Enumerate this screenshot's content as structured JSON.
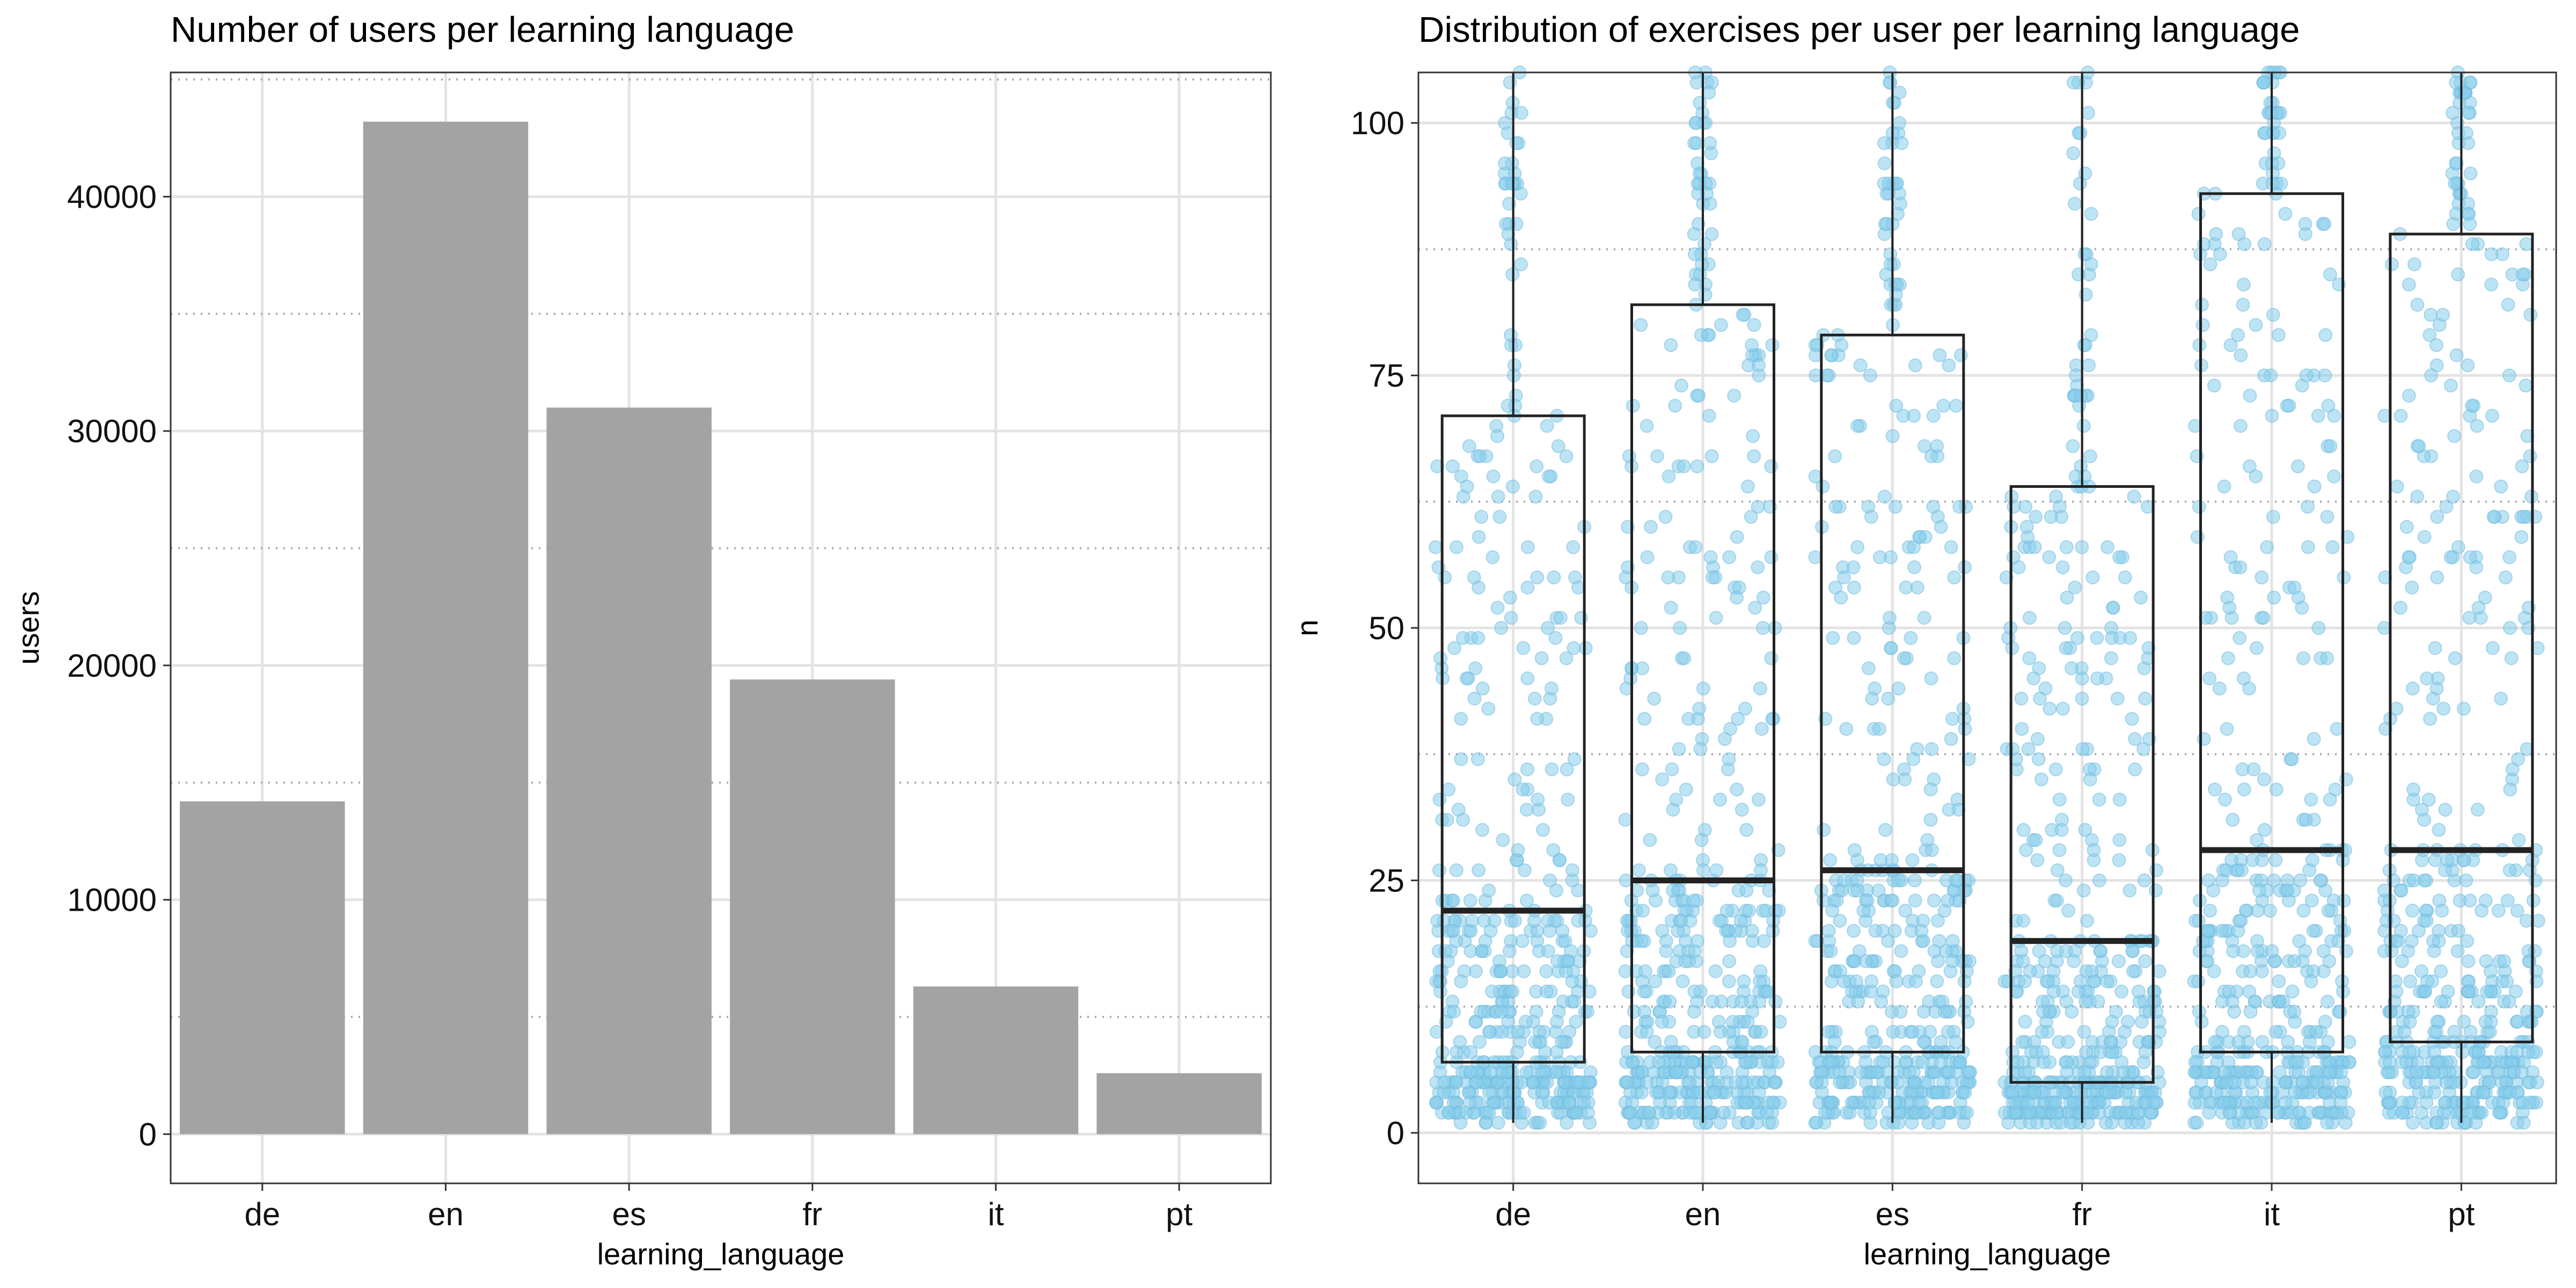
{
  "chart_data": [
    {
      "type": "bar",
      "title": "Number of users per learning language",
      "xlabel": "learning_language",
      "ylabel": "users",
      "categories": [
        "de",
        "en",
        "es",
        "fr",
        "it",
        "pt"
      ],
      "values": [
        14200,
        43200,
        31000,
        19400,
        6300,
        2600
      ],
      "ylim": [
        -2100,
        45300
      ],
      "yticks": [
        0,
        10000,
        20000,
        30000,
        40000
      ],
      "dotted_reference_lines": [
        5000,
        15000,
        25000,
        35000,
        45000
      ],
      "grid": true,
      "bar_color": "#a3a3a3"
    },
    {
      "type": "boxplot",
      "title": "Distribution of exercises per user per learning language",
      "xlabel": "learning_language",
      "ylabel": "n",
      "categories": [
        "de",
        "en",
        "es",
        "fr",
        "it",
        "pt"
      ],
      "boxes": [
        {
          "category": "de",
          "q1": 7,
          "median": 22,
          "q3": 71
        },
        {
          "category": "en",
          "q1": 8,
          "median": 25,
          "q3": 82
        },
        {
          "category": "es",
          "q1": 8,
          "median": 26,
          "q3": 79
        },
        {
          "category": "fr",
          "q1": 5,
          "median": 19,
          "q3": 64
        },
        {
          "category": "it",
          "q1": 8,
          "median": 28,
          "q3": 93
        },
        {
          "category": "pt",
          "q1": 9,
          "median": 28,
          "q3": 89
        }
      ],
      "whisker_min": 1,
      "ylim": [
        -5,
        105
      ],
      "yticks": [
        0,
        25,
        50,
        75,
        100
      ],
      "dotted_reference_lines": [
        12.5,
        37.5,
        62.5,
        87.5
      ],
      "grid": true,
      "point_color": "#87ceeb",
      "box_color": "#222222"
    }
  ]
}
